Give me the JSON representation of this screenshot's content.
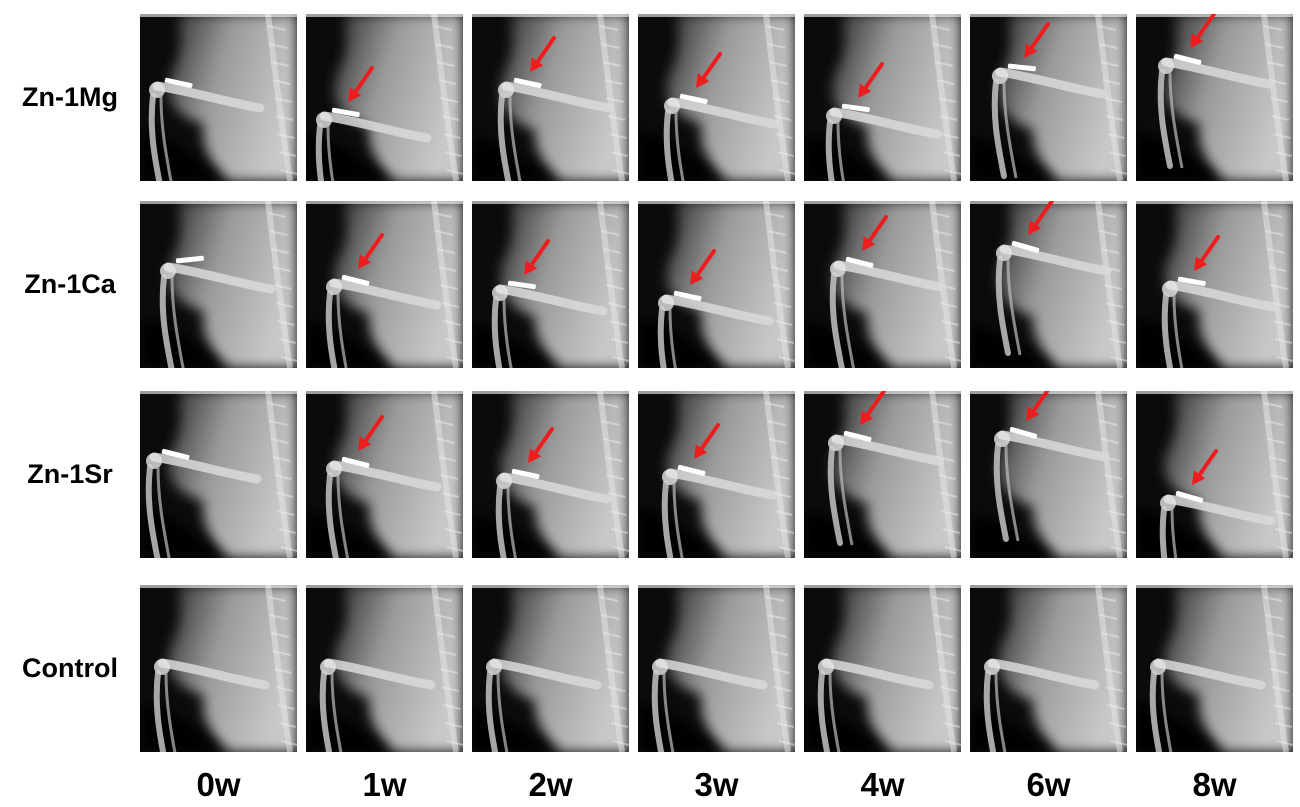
{
  "figure": {
    "rows": [
      {
        "label": "Zn-1Mg",
        "implant": true
      },
      {
        "label": "Zn-1Ca",
        "implant": true
      },
      {
        "label": "Zn-1Sr",
        "implant": true
      },
      {
        "label": "Control",
        "implant": false
      }
    ],
    "columns": [
      "0w",
      "1w",
      "2w",
      "3w",
      "4w",
      "6w",
      "8w"
    ],
    "arrow_color": "#ee1c1c",
    "arrow_from_column": 1,
    "image_content": "x-ray radiograph of rat hind limb"
  }
}
